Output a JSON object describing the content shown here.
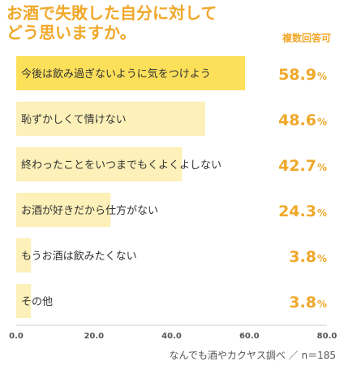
{
  "chart_data": {
    "type": "bar",
    "orientation": "horizontal",
    "title": "お酒で失敗した自分に対して\nどう思いますか。",
    "note": "複数回答可",
    "categories": [
      "今後は飲み過ぎないように気をつけよう",
      "恥ずかしくて情けない",
      "終わったことをいつまでもくよくよしない",
      "お酒が好きだから仕方がない",
      "もうお酒は飲みたくない",
      "その他"
    ],
    "values": [
      58.9,
      48.6,
      42.7,
      24.3,
      3.8,
      3.8
    ],
    "value_labels": [
      "58.9",
      "48.6",
      "42.7",
      "24.3",
      "3.8",
      "3.8"
    ],
    "value_unit": "%",
    "xlim": [
      0,
      80
    ],
    "xticks": [
      "0.0",
      "20.0",
      "40.0",
      "60.0",
      "80.0"
    ],
    "grid": false,
    "source": "なんでも酒やカクヤス調べ ／ n＝185",
    "colors": {
      "top_bar": "#fde05a",
      "other_bars": "#fdf0b8",
      "accent": "#f0a82a",
      "category_text": "#333333",
      "tick_text": "#555555"
    }
  }
}
